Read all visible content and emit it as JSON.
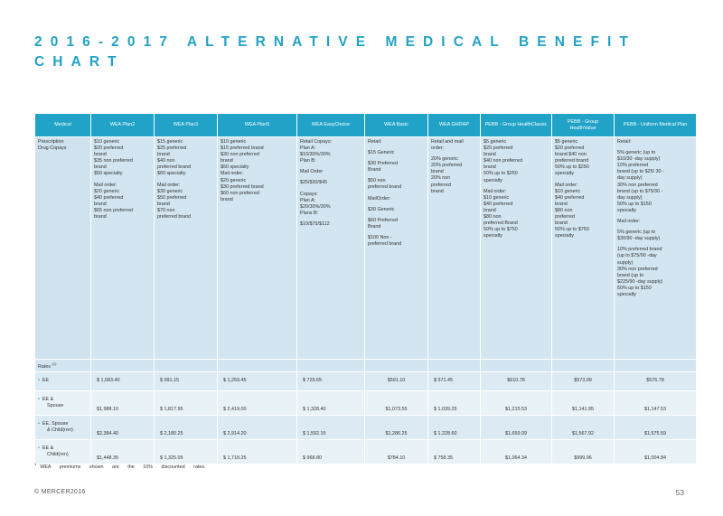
{
  "title": "2016-2017 ALTERNATIVE MEDICAL BENEFIT CHART",
  "columns": [
    "Medical",
    "WEA Plan2",
    "WEA Plan3",
    "WEA Plan5",
    "WEA EasyChoice",
    "WEA Basic",
    "WEA GHDHP",
    "PEBB - Group HealthClassic",
    "PEBB - Group HealthValue",
    "PEBB - Uniform Medical Plan"
  ],
  "prescription": {
    "label": [
      "Prescription",
      "Drug Copays"
    ],
    "cells": [
      [
        "$10 generic",
        "$20 preferred",
        "brand",
        "$35 non preferred",
        "brand",
        "$50 specialty",
        "",
        "Mail order:",
        "$20 generic",
        "$40 preferred",
        "brand",
        "$65 non preferred",
        "brand"
      ],
      [
        "$15 generic",
        "$25 preferred",
        "brand",
        "$40 non",
        "preferred brand",
        "$60 specialty",
        "",
        "Mail order:",
        "$30 generic",
        "$50 preferred",
        "brand",
        "$70 non",
        "preferred brand"
      ],
      [
        "$10 generic",
        "$15 preferred brand",
        "$30 non preferred",
        "brand",
        "$50 specialty",
        "Mail order:",
        "$20 generic",
        "$30 preferred brand",
        "$60 non preferred",
        "brand"
      ],
      [
        "Retail Copays:",
        "Plan A:",
        "$10/30%/30%",
        "Plan B:",
        "",
        "Mail Order",
        "",
        "$25/$30/$45",
        "",
        "Copays:",
        "Plan A:",
        "$20/30%/30%",
        "Plans B:",
        "",
        "$10/$75/$112"
      ],
      [
        "Retail:",
        "",
        "$15 Generic",
        "",
        "$30 Preferred",
        "Brand",
        "",
        "$50 non",
        "preferred brand",
        "",
        "MailOrder:",
        "",
        "$30 Generic",
        "",
        "$60 Preferred",
        "Brand",
        "",
        "$100 Non -",
        "preferred brand"
      ],
      [
        "Retail and mail",
        "order:",
        "",
        "20% generic",
        "20% preferred",
        "brand",
        "20% non",
        "preferred",
        "brand"
      ],
      [
        "$5 generic",
        "$20 preferred",
        "brand",
        "$40 non preferred",
        "brand",
        "50% up to $250",
        "specialty",
        "",
        "Mail order:",
        "$10 generic",
        "$40 preferred",
        "brand",
        "$80 non",
        "preferred Brand",
        "50% up to $750",
        "specialty"
      ],
      [
        "$5 generic",
        "$20 preferred",
        "brand $40 non",
        "preferred brand",
        "50% up to $250",
        "specialty",
        "",
        "Mail order:",
        "$10 generic",
        "$40 preferred",
        "brand",
        "$80 non",
        "preferred",
        "brand",
        "50% up to $750",
        "specialty"
      ],
      [
        "Retail:",
        "",
        "5% generic (up to",
        "$10/30 -day supply)",
        "10% preferred",
        "brand (up to $25/ 30 -",
        "day supply)",
        "30% non preferred",
        "brand (up to $75/30 -",
        "day supply)",
        "50% up to $150",
        "specialty",
        "",
        "Mail order:",
        "",
        "5% generic (up to",
        "$30/90 -day supply)",
        "",
        "10% preferred brand",
        "(up to $75/90 -day",
        "supply)",
        "30% non preferred",
        "brand (up to",
        "$225/90 -day supply)",
        "50% up to $150",
        "specialty"
      ]
    ]
  },
  "rates_label": "Rates",
  "rates_sup": "(1)",
  "rates": [
    {
      "label": [
        "EE"
      ],
      "values": [
        "$ 1,083.40",
        "$ 991.15",
        "$ 1,259.45",
        "$ 729.65",
        "$591.10",
        "$ 571.45",
        "$610.78",
        "$573.99",
        "$576.78"
      ]
    },
    {
      "label": [
        "EE &",
        "Spouse"
      ],
      "values": [
        "$1,988.10",
        "$ 1,817.95",
        "$ 2,419.00",
        "$ 1,328.40",
        "$1,073.55",
        "$ 1,039.25",
        "$1,215.53",
        "$1,141.95",
        "$1,147.53"
      ]
    },
    {
      "label": [
        "EE, Spouse",
        "& Child(ren)"
      ],
      "values": [
        "$2,384.40",
        "$ 2,180.25",
        "$ 2,914.20",
        "$ 1,592.15",
        "$1,286.25",
        "$ 1,228.60",
        "$1,659.09",
        "$1,567.92",
        "$1,575.59"
      ]
    },
    {
      "label": [
        "EE &",
        "Child(ren)"
      ],
      "values": [
        "$1,448.35",
        "$ 1,325.05",
        "$ 1,718.25",
        "$ 968.80",
        "$784.10",
        "$ 758.35",
        "$1,064.34",
        "$999.96",
        "$1,004.84"
      ]
    }
  ],
  "footnote_mark": "1",
  "footnote": "WEA premiums shown are the 10% discounted rates.",
  "footer": {
    "copyright": "© MERCER2016",
    "page_number": "53"
  },
  "colors": {
    "accent": "#22a2c6",
    "header_bg": "#21a3c8",
    "row_bg": "#d3e5f0"
  }
}
